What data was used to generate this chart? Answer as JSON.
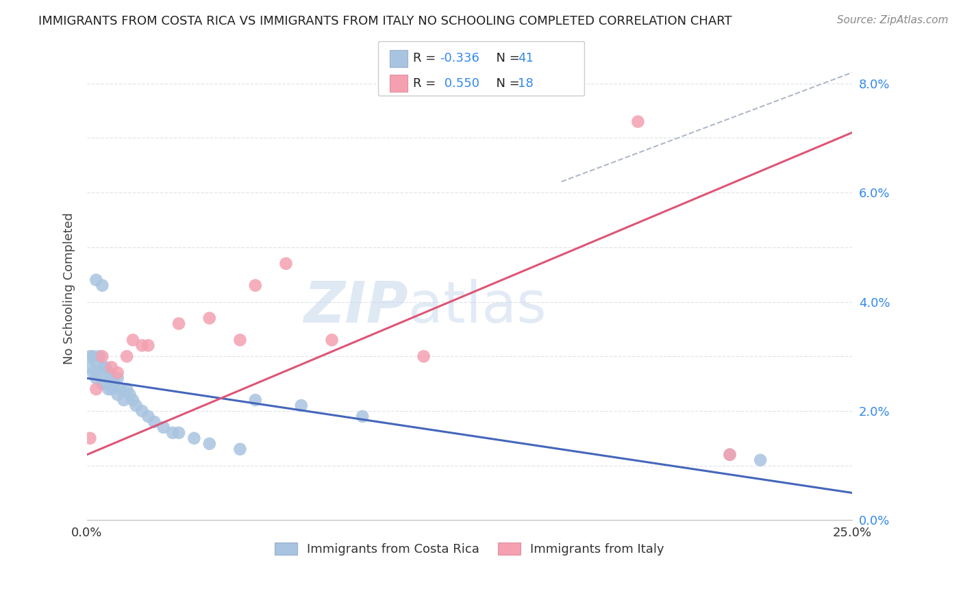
{
  "title": "IMMIGRANTS FROM COSTA RICA VS IMMIGRANTS FROM ITALY NO SCHOOLING COMPLETED CORRELATION CHART",
  "source": "Source: ZipAtlas.com",
  "ylabel_left": "No Schooling Completed",
  "legend_label_1": "Immigrants from Costa Rica",
  "legend_label_2": "Immigrants from Italy",
  "r1": "-0.336",
  "n1": "41",
  "r2": "0.550",
  "n2": "18",
  "color_blue": "#a8c4e0",
  "color_pink": "#f4a0b0",
  "line_blue": "#4466bb",
  "line_pink": "#dd5577",
  "line_dashed": "#b0b8c8",
  "background_color": "#ffffff",
  "grid_color": "#e0e4ea",
  "title_color": "#222222",
  "xlim": [
    0.0,
    0.25
  ],
  "ylim": [
    0.0,
    0.085
  ],
  "blue_x": [
    0.001,
    0.001,
    0.002,
    0.002,
    0.003,
    0.003,
    0.003,
    0.004,
    0.004,
    0.005,
    0.005,
    0.005,
    0.006,
    0.006,
    0.007,
    0.007,
    0.008,
    0.008,
    0.009,
    0.01,
    0.01,
    0.011,
    0.012,
    0.013,
    0.014,
    0.015,
    0.016,
    0.018,
    0.02,
    0.022,
    0.025,
    0.028,
    0.03,
    0.035,
    0.04,
    0.05,
    0.055,
    0.07,
    0.09,
    0.21,
    0.22
  ],
  "blue_y": [
    0.028,
    0.03,
    0.027,
    0.03,
    0.026,
    0.029,
    0.044,
    0.027,
    0.03,
    0.025,
    0.028,
    0.043,
    0.025,
    0.028,
    0.024,
    0.027,
    0.024,
    0.026,
    0.025,
    0.023,
    0.026,
    0.024,
    0.022,
    0.024,
    0.023,
    0.022,
    0.021,
    0.02,
    0.019,
    0.018,
    0.017,
    0.016,
    0.016,
    0.015,
    0.014,
    0.013,
    0.022,
    0.021,
    0.019,
    0.012,
    0.011
  ],
  "pink_x": [
    0.001,
    0.003,
    0.005,
    0.008,
    0.01,
    0.013,
    0.015,
    0.018,
    0.02,
    0.03,
    0.04,
    0.05,
    0.055,
    0.065,
    0.08,
    0.11,
    0.18,
    0.21
  ],
  "pink_y": [
    0.015,
    0.024,
    0.03,
    0.028,
    0.027,
    0.03,
    0.033,
    0.032,
    0.032,
    0.036,
    0.037,
    0.033,
    0.043,
    0.047,
    0.033,
    0.03,
    0.073,
    0.012
  ],
  "blue_line_x0": 0.0,
  "blue_line_y0": 0.026,
  "blue_line_x1": 0.25,
  "blue_line_y1": 0.005,
  "pink_line_x0": 0.0,
  "pink_line_y0": 0.012,
  "pink_line_x1": 0.25,
  "pink_line_y1": 0.071,
  "dash_line_x0": 0.155,
  "dash_line_y0": 0.062,
  "dash_line_x1": 0.25,
  "dash_line_y1": 0.082
}
